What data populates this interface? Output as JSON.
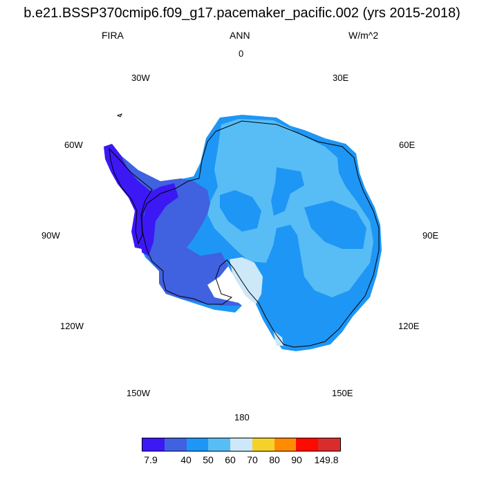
{
  "title": "b.e21.BSSP370cmip6.f09_g17.pacemaker_pacific.002 (yrs 2015-2018)",
  "left_label": "FIRA",
  "center_label": "ANN",
  "right_label": "W/m^2",
  "longitude_labels": {
    "n0": "0",
    "e30": "30E",
    "e60": "60E",
    "e90": "90E",
    "e120": "120E",
    "e150": "150E",
    "s180": "180",
    "w150": "150W",
    "w120": "120W",
    "w90": "90W",
    "w60": "60W",
    "w30": "30W"
  },
  "colorbar": {
    "colors": [
      "#3c18f5",
      "#4061e0",
      "#1e96f5",
      "#58bdf5",
      "#cde8f8",
      "#f5d22a",
      "#ff8c00",
      "#ff0a00",
      "#d92d2d"
    ],
    "labels": [
      "7.9",
      "40",
      "50",
      "60",
      "70",
      "80",
      "90",
      "149.8"
    ]
  },
  "field_colors": {
    "low": "#3c18f5",
    "mid_low": "#4061e0",
    "mid": "#1e96f5",
    "mid_high": "#58bdf5",
    "high": "#cde8f8"
  }
}
